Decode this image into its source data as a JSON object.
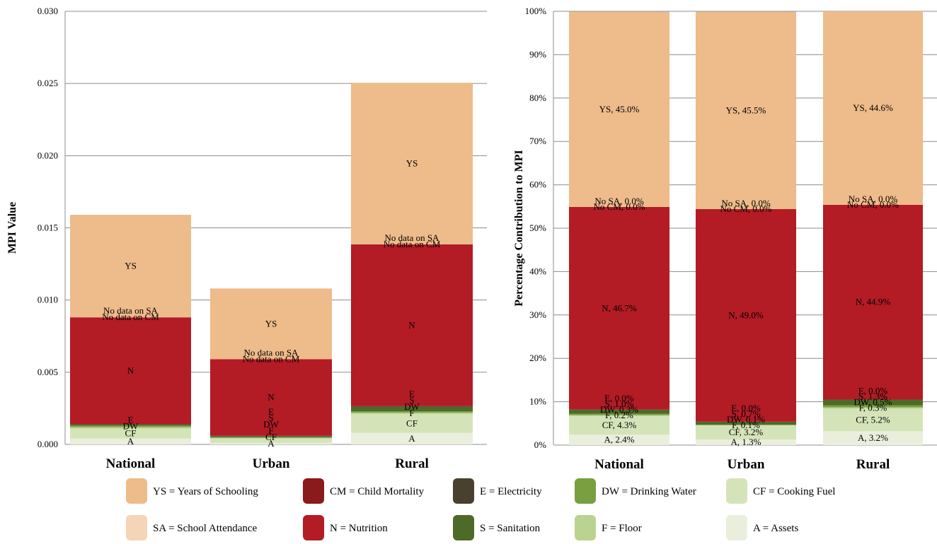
{
  "legend": [
    {
      "key": "YS",
      "text": "YS = Years of Schooling",
      "color": "#eebb8a"
    },
    {
      "key": "CM",
      "text": "CM = Child Mortality",
      "color": "#8b1a1a"
    },
    {
      "key": "E",
      "text": "E = Electricity",
      "color": "#4a4030"
    },
    {
      "key": "DW",
      "text": "DW = Drinking Water",
      "color": "#78a040"
    },
    {
      "key": "CF",
      "text": "CF = Cooking Fuel",
      "color": "#d4e4b8"
    },
    {
      "key": "SA",
      "text": "SA = School Attendance",
      "color": "#f5d5b8"
    },
    {
      "key": "N",
      "text": "N = Nutrition",
      "color": "#b31b25"
    },
    {
      "key": "S",
      "text": "S = Sanitation",
      "color": "#4e6a28"
    },
    {
      "key": "F",
      "text": "F = Floor",
      "color": "#b8d490"
    },
    {
      "key": "A",
      "text": "A = Assets",
      "color": "#e9efdc"
    }
  ],
  "chart_data": [
    {
      "type": "bar",
      "stacked": true,
      "ylabel": "MPI Value",
      "ylim": [
        0,
        0.03
      ],
      "yticks": [
        "0.000",
        "0.005",
        "0.010",
        "0.015",
        "0.020",
        "0.025",
        "0.030"
      ],
      "grid": true,
      "categories": [
        "National",
        "Urban",
        "Rural"
      ],
      "series": [
        {
          "name": "A",
          "values": [
            0.0004,
            0.0001,
            0.0008
          ],
          "labels": [
            "A",
            "A",
            "A"
          ]
        },
        {
          "name": "CF",
          "values": [
            0.0007,
            0.0003,
            0.0013
          ],
          "labels": [
            "CF",
            "CF",
            "CF"
          ]
        },
        {
          "name": "F",
          "values": [
            0.0001,
            5e-05,
            0.0001
          ],
          "labels": [
            "",
            "F",
            "F"
          ]
        },
        {
          "name": "DW",
          "values": [
            0.0001,
            5e-05,
            0.0001
          ],
          "labels": [
            "DW",
            "DW",
            "DW"
          ]
        },
        {
          "name": "S",
          "values": [
            5e-05,
            5e-05,
            0.0003
          ],
          "labels": [
            "",
            "S",
            "S"
          ]
        },
        {
          "name": "E",
          "values": [
            5e-05,
            5e-05,
            5e-05
          ],
          "labels": [
            "E",
            "E",
            "E"
          ]
        },
        {
          "name": "N",
          "values": [
            0.0074,
            0.0053,
            0.0112
          ],
          "labels": [
            "N",
            "N",
            "N"
          ]
        },
        {
          "name": "CM",
          "values": [
            0,
            0,
            0
          ],
          "labels": [
            "No data on CM",
            "No data on CM",
            "No data on CM"
          ]
        },
        {
          "name": "SA",
          "values": [
            0,
            0,
            0
          ],
          "labels": [
            "No data on SA",
            "No data on SA",
            "No data on SA"
          ]
        },
        {
          "name": "YS",
          "values": [
            0.0071,
            0.0049,
            0.0112
          ],
          "labels": [
            "YS",
            "YS",
            "YS"
          ]
        }
      ]
    },
    {
      "type": "bar",
      "stacked": true,
      "ylabel": "Percentage Contribution to MPI",
      "ylim": [
        0,
        100
      ],
      "yticks": [
        "0%",
        "10%",
        "20%",
        "30%",
        "40%",
        "50%",
        "60%",
        "70%",
        "80%",
        "90%",
        "100%"
      ],
      "grid": true,
      "categories": [
        "National",
        "Urban",
        "Rural"
      ],
      "series": [
        {
          "name": "A",
          "values": [
            2.4,
            1.3,
            3.2
          ],
          "labels": [
            "A, 2.4%",
            "A, 1.3%",
            "A, 3.2%"
          ]
        },
        {
          "name": "CF",
          "values": [
            4.3,
            3.2,
            5.2
          ],
          "labels": [
            "CF, 4.3%",
            "CF, 3.2%",
            "CF, 5.2%"
          ]
        },
        {
          "name": "F",
          "values": [
            0.2,
            0.1,
            0.3
          ],
          "labels": [
            "F, 0.2%",
            "F, 0.1%",
            "F, 0.3%"
          ]
        },
        {
          "name": "DW",
          "values": [
            0.3,
            0.1,
            0.5
          ],
          "labels": [
            "DW, 0.3%",
            "DW, 0.1%",
            "DW, 0.5%"
          ]
        },
        {
          "name": "S",
          "values": [
            1.0,
            0.7,
            1.3
          ],
          "labels": [
            "S, 1.0%",
            "S, 0.7%",
            "S, 1.3%"
          ]
        },
        {
          "name": "E",
          "values": [
            0.0,
            0.0,
            0.0
          ],
          "labels": [
            "E, 0.0%",
            "E, 0.0%",
            "E, 0.0%"
          ]
        },
        {
          "name": "N",
          "values": [
            46.7,
            49.0,
            44.9
          ],
          "labels": [
            "N, 46.7%",
            "N, 49.0%",
            "N, 44.9%"
          ]
        },
        {
          "name": "CM",
          "values": [
            0.0,
            0.0,
            0.0
          ],
          "labels": [
            "No CM, 0.0%",
            "No CM, 0.0%",
            "No CM, 0.0%"
          ]
        },
        {
          "name": "SA",
          "values": [
            0.0,
            0.0,
            0.0
          ],
          "labels": [
            "No SA, 0.0%",
            "No SA, 0.0%",
            "No SA, 0.0%"
          ]
        },
        {
          "name": "YS",
          "values": [
            45.0,
            45.5,
            44.6
          ],
          "labels": [
            "YS, 45.0%",
            "YS, 45.5%",
            "YS, 44.6%"
          ]
        }
      ]
    }
  ]
}
